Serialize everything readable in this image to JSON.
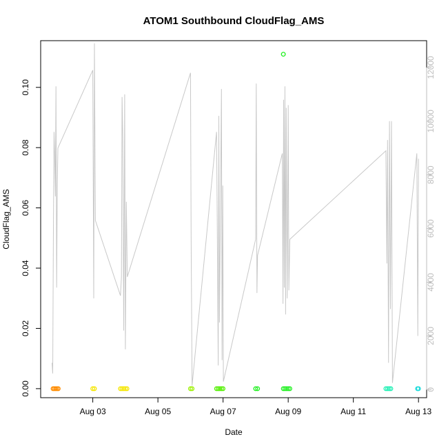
{
  "chart_data": {
    "type": "scatter",
    "title": "ATOM1 Southbound CloudFlag_AMS",
    "xlabel": "Date",
    "ylabel": "CloudFlag_AMS",
    "x_ticks": [
      "Aug 03",
      "Aug 05",
      "Aug 07",
      "Aug 09",
      "Aug 11",
      "Aug 13"
    ],
    "x_tick_days": [
      3,
      5,
      7,
      9,
      11,
      13
    ],
    "xlim_days": [
      1.4,
      13.25
    ],
    "ylim": [
      -0.003,
      0.1155
    ],
    "y_ticks": [
      "0.00",
      "0.02",
      "0.04",
      "0.06",
      "0.08",
      "0.10"
    ],
    "y_tick_values": [
      0,
      0.02,
      0.04,
      0.06,
      0.08,
      0.1
    ],
    "y2_ticks": [
      "0",
      "2000",
      "4000",
      "6000",
      "8000",
      "10000",
      "12000"
    ],
    "y2_tick_values": [
      0,
      2000,
      4000,
      6000,
      8000,
      10000,
      12000
    ],
    "y2_lim": [
      -300,
      13000
    ],
    "y2_color": "#bdbdbd",
    "line_color": "#c8c8c8",
    "series": [
      {
        "color": "#ff8c00",
        "points": [
          [
            1.78,
            0
          ],
          [
            1.82,
            0
          ],
          [
            1.86,
            0
          ],
          [
            1.9,
            0
          ],
          [
            1.94,
            0
          ]
        ]
      },
      {
        "color": "#f5e600",
        "points": [
          [
            3.0,
            0
          ],
          [
            3.05,
            0
          ],
          [
            3.85,
            0
          ],
          [
            3.9,
            0
          ],
          [
            3.95,
            0
          ],
          [
            4.0,
            0
          ],
          [
            4.05,
            0
          ]
        ]
      },
      {
        "color": "#9bf000",
        "points": [
          [
            6.0,
            0
          ],
          [
            6.05,
            0
          ]
        ]
      },
      {
        "color": "#52f000",
        "points": [
          [
            6.8,
            0
          ],
          [
            6.85,
            0
          ],
          [
            6.9,
            0
          ],
          [
            6.95,
            0
          ],
          [
            7.0,
            0
          ]
        ]
      },
      {
        "color": "#1ef01e",
        "points": [
          [
            8.0,
            0
          ],
          [
            8.06,
            0
          ],
          [
            8.85,
            0
          ],
          [
            8.9,
            0
          ],
          [
            8.95,
            0
          ],
          [
            9.0,
            0
          ],
          [
            9.05,
            0
          ],
          [
            8.85,
            0.111
          ]
        ]
      },
      {
        "color": "#1ef0b4",
        "points": [
          [
            12.0,
            0
          ],
          [
            12.05,
            0
          ],
          [
            12.1,
            0
          ],
          [
            12.15,
            0
          ]
        ]
      },
      {
        "color": "#1edcdc",
        "points": [
          [
            12.97,
            0
          ],
          [
            13.0,
            0
          ]
        ]
      }
    ],
    "line_series_y2": [
      [
        1.75,
        1000
      ],
      [
        1.77,
        600
      ],
      [
        1.79,
        5500
      ],
      [
        1.81,
        9600
      ],
      [
        1.83,
        8800
      ],
      [
        1.85,
        7200
      ],
      [
        1.87,
        11300
      ],
      [
        1.89,
        3800
      ],
      [
        1.91,
        7600
      ],
      [
        1.93,
        9000
      ],
      [
        3.0,
        11900
      ],
      [
        3.03,
        3400
      ],
      [
        3.05,
        12900
      ],
      [
        3.08,
        6300
      ],
      [
        3.85,
        3500
      ],
      [
        3.88,
        4200
      ],
      [
        3.9,
        10900
      ],
      [
        3.92,
        9400
      ],
      [
        3.95,
        2200
      ],
      [
        3.98,
        11000
      ],
      [
        4.0,
        1500
      ],
      [
        4.03,
        7000
      ],
      [
        4.06,
        4200
      ],
      [
        6.0,
        11800
      ],
      [
        6.02,
        5700
      ],
      [
        6.05,
        150
      ],
      [
        6.8,
        9600
      ],
      [
        6.82,
        6600
      ],
      [
        6.85,
        900
      ],
      [
        6.87,
        10200
      ],
      [
        6.89,
        2500
      ],
      [
        6.92,
        6900
      ],
      [
        6.95,
        11200
      ],
      [
        6.97,
        1100
      ],
      [
        6.99,
        7600
      ],
      [
        7.01,
        300
      ],
      [
        8.0,
        5600
      ],
      [
        8.02,
        11400
      ],
      [
        8.04,
        3600
      ],
      [
        8.06,
        5000
      ],
      [
        8.82,
        8800
      ],
      [
        8.84,
        3200
      ],
      [
        8.86,
        10800
      ],
      [
        8.88,
        3800
      ],
      [
        8.9,
        11300
      ],
      [
        8.92,
        2800
      ],
      [
        8.94,
        10500
      ],
      [
        8.97,
        3400
      ],
      [
        9.0,
        10600
      ],
      [
        9.02,
        3700
      ],
      [
        9.05,
        5600
      ],
      [
        12.0,
        8900
      ],
      [
        12.03,
        4700
      ],
      [
        12.05,
        9300
      ],
      [
        12.08,
        1000
      ],
      [
        12.11,
        10000
      ],
      [
        12.14,
        3000
      ],
      [
        12.17,
        10000
      ],
      [
        12.2,
        250
      ],
      [
        12.95,
        8800
      ],
      [
        12.98,
        2000
      ],
      [
        13.0,
        8600
      ]
    ],
    "grid": false,
    "legend": "none"
  }
}
